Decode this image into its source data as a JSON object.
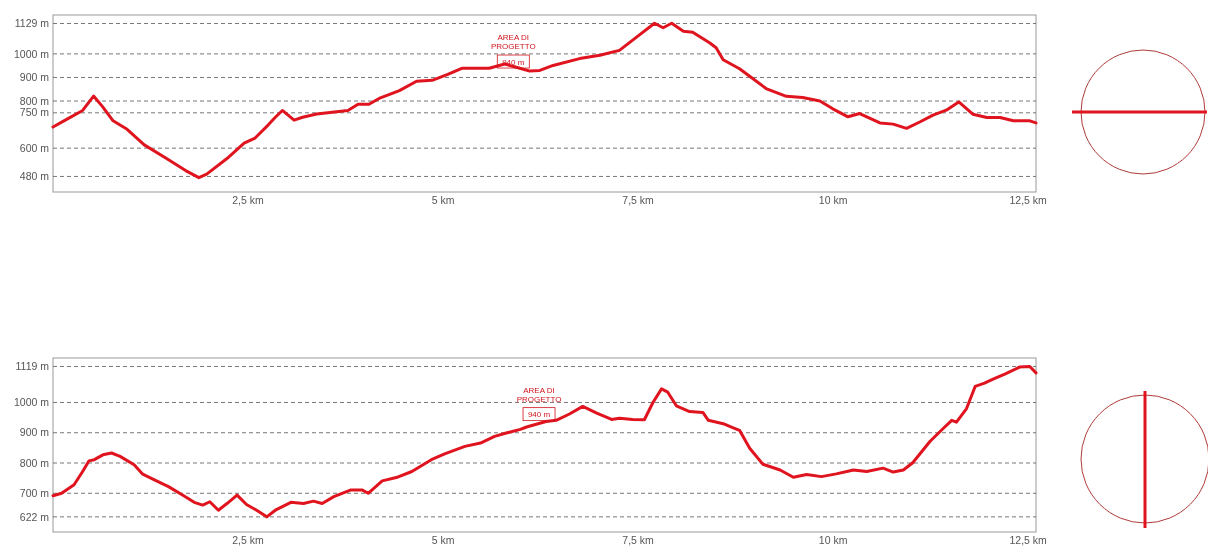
{
  "chart_data": [
    {
      "type": "line",
      "xlim": [
        0,
        12.6
      ],
      "ylim": [
        414,
        1165
      ],
      "grid": "y",
      "line_style": "solid",
      "marker": "none",
      "xticks": [
        {
          "value": 2.5,
          "label": "2,5 km"
        },
        {
          "value": 5,
          "label": "5 km"
        },
        {
          "value": 7.5,
          "label": "7,5 km"
        },
        {
          "value": 10,
          "label": "10 km"
        },
        {
          "value": 12.5,
          "label": "12,5 km"
        }
      ],
      "yticks": [
        {
          "value": 480,
          "label": "480 m"
        },
        {
          "value": 600,
          "label": "600 m"
        },
        {
          "value": 750,
          "label": "750 m"
        },
        {
          "value": 800,
          "label": "800 m"
        },
        {
          "value": 900,
          "label": "900 m"
        },
        {
          "value": 1000,
          "label": "1000 m"
        },
        {
          "value": 1129,
          "label": "1129 m"
        }
      ],
      "annotations": [
        "AREA DI PROGETTO",
        {
          "text": "940 m",
          "x": 5.9,
          "y": 940
        }
      ],
      "series": [
        {
          "color": "#e0141e",
          "x": [
            0,
            0.18,
            0.38,
            0.52,
            0.64,
            0.77,
            0.95,
            1.17,
            1.44,
            1.7,
            1.87,
            1.97,
            2.23,
            2.45,
            2.59,
            2.76,
            2.85,
            2.94,
            3.09,
            3.2,
            3.38,
            3.78,
            3.91,
            4.05,
            4.18,
            4.44,
            4.66,
            4.86,
            5.06,
            5.24,
            5.46,
            5.59,
            5.79,
            5.95,
            6.11,
            6.24,
            6.41,
            6.75,
            7.01,
            7.26,
            7.48,
            7.71,
            7.82,
            7.93,
            8.08,
            8.2,
            8.42,
            8.5,
            8.59,
            8.8,
            9.14,
            9.4,
            9.61,
            9.83,
            9.99,
            10.19,
            10.34,
            10.6,
            10.77,
            10.94,
            11.11,
            11.28,
            11.45,
            11.61,
            11.79,
            11.97,
            12.14,
            12.31,
            12.52,
            12.6
          ],
          "values": [
            690,
            723,
            760,
            821,
            774,
            716,
            680,
            614,
            559,
            505,
            475,
            490,
            556,
            621,
            643,
            699,
            731,
            760,
            719,
            731,
            745,
            760,
            786,
            786,
            811,
            844,
            884,
            888,
            913,
            939,
            939,
            939,
            957,
            942,
            927,
            930,
            951,
            980,
            994,
            1015,
            1071,
            1130,
            1111,
            1130,
            1096,
            1092,
            1046,
            1026,
            975,
            937,
            853,
            820,
            815,
            800,
            768,
            733,
            747,
            707,
            702,
            684,
            711,
            740,
            761,
            796,
            744,
            730,
            730,
            716,
            716,
            707
          ]
        }
      ]
    },
    {
      "type": "line",
      "xlim": [
        0,
        12.6
      ],
      "ylim": [
        572,
        1147
      ],
      "grid": "y",
      "line_style": "solid",
      "marker": "none",
      "xticks": [
        {
          "value": 2.5,
          "label": "2,5 km"
        },
        {
          "value": 5,
          "label": "5 km"
        },
        {
          "value": 7.5,
          "label": "7,5 km"
        },
        {
          "value": 10,
          "label": "10 km"
        },
        {
          "value": 12.5,
          "label": "12,5 km"
        }
      ],
      "yticks": [
        {
          "value": 622,
          "label": "622 m"
        },
        {
          "value": 700,
          "label": "700 m"
        },
        {
          "value": 800,
          "label": "800 m"
        },
        {
          "value": 900,
          "label": "900 m"
        },
        {
          "value": 1000,
          "label": "1000 m"
        },
        {
          "value": 1119,
          "label": "1119 m"
        }
      ],
      "annotations": [
        "AREA DI PROGETTO",
        {
          "text": "940 m",
          "x": 6.23,
          "y": 940
        }
      ],
      "series": [
        {
          "color": "#e0141e",
          "x": [
            0,
            0.11,
            0.27,
            0.38,
            0.46,
            0.53,
            0.64,
            0.75,
            0.86,
            1.04,
            1.15,
            1.3,
            1.48,
            1.66,
            1.81,
            1.92,
            2.01,
            2.12,
            2.23,
            2.36,
            2.48,
            2.61,
            2.74,
            2.85,
            3.05,
            3.21,
            3.34,
            3.45,
            3.6,
            3.82,
            3.96,
            4.04,
            4.22,
            4.4,
            4.6,
            4.85,
            5.02,
            5.28,
            5.48,
            5.66,
            5.81,
            5.99,
            6.07,
            6.32,
            6.45,
            6.62,
            6.79,
            6.97,
            7.16,
            7.26,
            7.43,
            7.58,
            7.69,
            7.8,
            7.88,
            7.99,
            8.16,
            8.33,
            8.4,
            8.59,
            8.72,
            8.8,
            8.93,
            9.1,
            9.32,
            9.49,
            9.66,
            9.85,
            10.04,
            10.26,
            10.43,
            10.64,
            10.77,
            10.9,
            11.02,
            11.24,
            11.41,
            11.52,
            11.58,
            11.71,
            11.82,
            11.94,
            12.05,
            12.2,
            12.39,
            12.52,
            12.6
          ],
          "values": [
            692,
            700,
            728,
            772,
            807,
            811,
            827,
            833,
            822,
            794,
            763,
            744,
            722,
            694,
            670,
            661,
            672,
            644,
            666,
            694,
            663,
            644,
            622,
            644,
            670,
            666,
            674,
            666,
            689,
            711,
            711,
            700,
            741,
            752,
            772,
            811,
            830,
            855,
            866,
            888,
            899,
            911,
            919,
            937,
            941,
            962,
            987,
            965,
            944,
            948,
            944,
            943,
            1000,
            1045,
            1034,
            989,
            970,
            967,
            941,
            930,
            916,
            908,
            849,
            796,
            777,
            753,
            762,
            755,
            764,
            777,
            772,
            783,
            770,
            777,
            801,
            871,
            914,
            941,
            935,
            980,
            1053,
            1064,
            1077,
            1094,
            1117,
            1119,
            1098
          ]
        }
      ]
    }
  ]
}
